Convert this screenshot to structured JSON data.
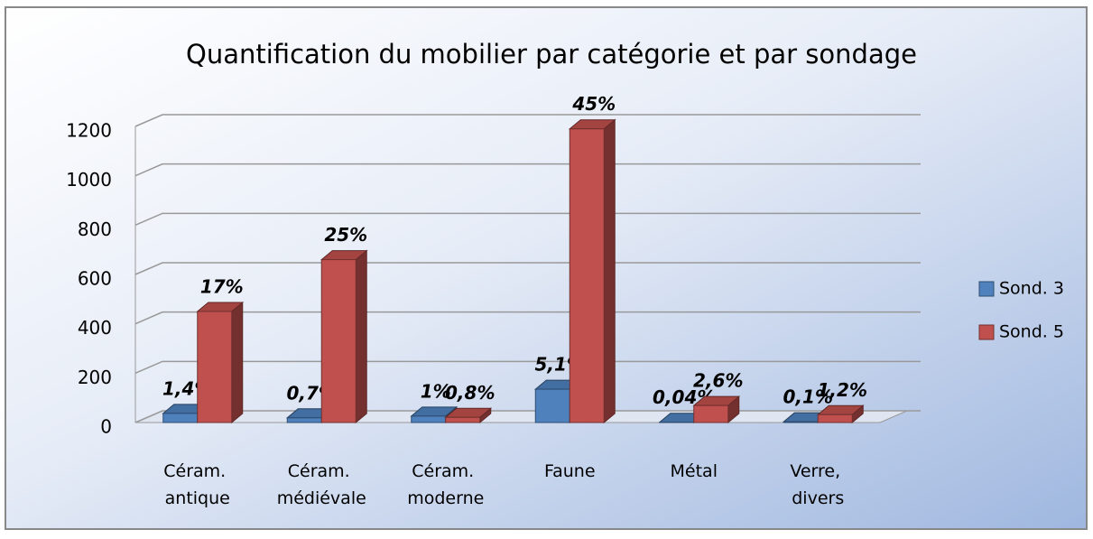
{
  "chart_data": {
    "type": "bar3d",
    "title": "Quantification du mobilier par catégorie et par  sondage",
    "categories": [
      "Céram. antique",
      "Céram. médiévale",
      "Céram. moderne",
      "Faune",
      "Métal",
      "Verre, divers"
    ],
    "series": [
      {
        "name": "Sond. 3",
        "color": "#4f81bd",
        "values": [
          37,
          19,
          26,
          135,
          1,
          3
        ],
        "data_labels": [
          "1,4%",
          "0,7%",
          "1%",
          "5,1%",
          "0,04%",
          "0,1%"
        ]
      },
      {
        "name": "Sond. 5",
        "color": "#c0504d",
        "values": [
          450,
          660,
          21,
          1190,
          69,
          32
        ],
        "data_labels": [
          "17%",
          "25%",
          "0,8%",
          "45%",
          "2,6%",
          "1,2%"
        ]
      }
    ],
    "ylim": [
      0,
      1200
    ],
    "yticks": [
      0,
      200,
      400,
      600,
      800,
      1000,
      1200
    ],
    "grid": true,
    "legend": "right"
  }
}
